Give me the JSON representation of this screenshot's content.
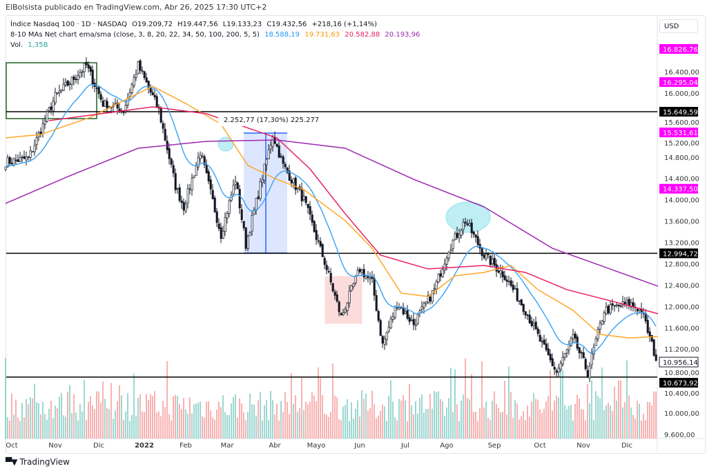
{
  "attribution": "ElBolsista publicado en TradingView.com, Abr 26, 2025 17:30 UTC+2",
  "legend": {
    "symbol": "Índice Nasdaq 100 · 1D · NASDAQ",
    "open": "O19.209,72",
    "high": "H19.447,56",
    "low": "L19.133,23",
    "close": "C19.432,56",
    "change": "+218,16 (+1,14%)",
    "indicator": "8-10 MAs Net chart ema/sma (close, 3, 8, 20, 22, 34, 50, 100, 200, 5, 5)",
    "ma_values": [
      {
        "v": "18.588,19",
        "color": "#2196f3"
      },
      {
        "v": "19.731,63",
        "color": "#ff9800"
      },
      {
        "v": "20.582,88",
        "color": "#e91e63"
      },
      {
        "v": "20.193,96",
        "color": "#9c27b0"
      }
    ],
    "vol_label": "Vol.",
    "vol_value": "1,35B"
  },
  "currency": "USD",
  "footer": {
    "brand": "TradingView",
    "logo": "TV"
  },
  "chart_data": {
    "type": "candlestick",
    "bars": 315,
    "ylim": [
      9600,
      16900
    ],
    "yticks": [
      16400,
      16000,
      15600,
      15200,
      14800,
      14400,
      14000,
      13600,
      13200,
      12800,
      12400,
      12000,
      11600,
      11200,
      10800,
      10400,
      10000,
      9600
    ],
    "ytick_labels": [
      "16.400,00",
      "16.000,00",
      "15.600,00",
      "15.200,00",
      "14.800,00",
      "14.400,00",
      "14.000,00",
      "13.600,00",
      "13.200,00",
      "12.800,00",
      "12.400,00",
      "12.000,00",
      "11.600,00",
      "11.200,00",
      "10.800,00",
      "10.400,00",
      "10.000,00",
      "9.600,00"
    ],
    "xticks": [
      {
        "label": "Oct",
        "bar": 3
      },
      {
        "label": "Nov",
        "bar": 24
      },
      {
        "label": "Dic",
        "bar": 45
      },
      {
        "label": "2022",
        "bar": 67,
        "bold": true
      },
      {
        "label": "Feb",
        "bar": 87
      },
      {
        "label": "Mar",
        "bar": 107
      },
      {
        "label": "Abr",
        "bar": 130
      },
      {
        "label": "Mayo",
        "bar": 150
      },
      {
        "label": "Jun",
        "bar": 171
      },
      {
        "label": "Jul",
        "bar": 193
      },
      {
        "label": "Ago",
        "bar": 213
      },
      {
        "label": "Sep",
        "bar": 236
      },
      {
        "label": "Oct",
        "bar": 258
      },
      {
        "label": "Nov",
        "bar": 279
      },
      {
        "label": "Dic",
        "bar": 300
      }
    ],
    "close_path": [
      [
        0,
        14706
      ],
      [
        11,
        14771
      ],
      [
        24,
        15935
      ],
      [
        39,
        16516
      ],
      [
        47,
        15805
      ],
      [
        57,
        15676
      ],
      [
        64,
        16516
      ],
      [
        74,
        15676
      ],
      [
        82,
        14254
      ],
      [
        86,
        13866
      ],
      [
        94,
        14900
      ],
      [
        104,
        13349
      ],
      [
        111,
        14383
      ],
      [
        116,
        13155
      ],
      [
        129,
        15223
      ],
      [
        134,
        14642
      ],
      [
        144,
        13995
      ],
      [
        154,
        12831
      ],
      [
        162,
        11797
      ],
      [
        171,
        12702
      ],
      [
        177,
        12443
      ],
      [
        182,
        11280
      ],
      [
        189,
        12055
      ],
      [
        197,
        11668
      ],
      [
        207,
        12314
      ],
      [
        214,
        13090
      ],
      [
        222,
        13607
      ],
      [
        231,
        12961
      ],
      [
        241,
        12573
      ],
      [
        251,
        11926
      ],
      [
        259,
        11280
      ],
      [
        266,
        10762
      ],
      [
        274,
        11409
      ],
      [
        281,
        10762
      ],
      [
        289,
        11926
      ],
      [
        301,
        12055
      ],
      [
        307,
        11926
      ],
      [
        314,
        11021
      ]
    ],
    "ma_series": [
      {
        "name": "EMA 20",
        "color": "#42a5f5",
        "computed": true
      },
      {
        "name": "MA 50",
        "color": "#ffa726",
        "points": [
          [
            0,
            15159
          ],
          [
            17,
            15223
          ],
          [
            41,
            15547
          ],
          [
            71,
            16128
          ],
          [
            87,
            15805
          ],
          [
            104,
            15417
          ],
          [
            117,
            14642
          ],
          [
            131,
            14383
          ],
          [
            144,
            14189
          ],
          [
            164,
            13607
          ],
          [
            177,
            13090
          ],
          [
            191,
            12249
          ],
          [
            204,
            12185
          ],
          [
            217,
            12573
          ],
          [
            231,
            12637
          ],
          [
            244,
            12767
          ],
          [
            257,
            12314
          ],
          [
            274,
            11926
          ],
          [
            287,
            11474
          ],
          [
            301,
            11409
          ],
          [
            315,
            11435
          ]
        ]
      },
      {
        "name": "MA 100",
        "color": "#e91e63",
        "points": [
          [
            21,
            15482
          ],
          [
            71,
            15740
          ],
          [
            97,
            15611
          ],
          [
            131,
            15159
          ],
          [
            147,
            14577
          ],
          [
            164,
            13736
          ],
          [
            181,
            12961
          ],
          [
            204,
            12702
          ],
          [
            231,
            12767
          ],
          [
            251,
            12637
          ],
          [
            271,
            12314
          ],
          [
            297,
            12055
          ],
          [
            315,
            11862
          ]
        ]
      },
      {
        "name": "MA 200",
        "color": "#9c27b0",
        "points": [
          [
            0,
            13930
          ],
          [
            31,
            14448
          ],
          [
            64,
            14965
          ],
          [
            97,
            15094
          ],
          [
            131,
            15120
          ],
          [
            164,
            14965
          ],
          [
            197,
            14383
          ],
          [
            231,
            13866
          ],
          [
            264,
            13090
          ],
          [
            315,
            12379
          ]
        ]
      }
    ],
    "hlines": [
      {
        "price": 15649.59,
        "label": "15.649,59"
      },
      {
        "price": 12994.72,
        "label": "12.994,72"
      },
      {
        "price": 10673.92,
        "label": "10.673,92"
      }
    ],
    "magenta_labels": [
      {
        "price": 16826.76,
        "label": "16.826,76"
      },
      {
        "price": 16295.04,
        "label": "16.295,04"
      },
      {
        "price": 15531.61,
        "label": "15.531,61"
      },
      {
        "price": 14337.5,
        "label": "14.337,50"
      }
    ],
    "last_price": {
      "price": 10956.14,
      "label": "10.956,14"
    },
    "measure": {
      "from_bar": 115,
      "to_bar": 136,
      "low": 13000,
      "high": 15250,
      "label": "2.252,77 (17,30%) 225.277"
    },
    "colors": {
      "up": "#26a69a",
      "down": "#ef5350",
      "candle": "#131722",
      "magenta": "#ff00ff"
    }
  }
}
